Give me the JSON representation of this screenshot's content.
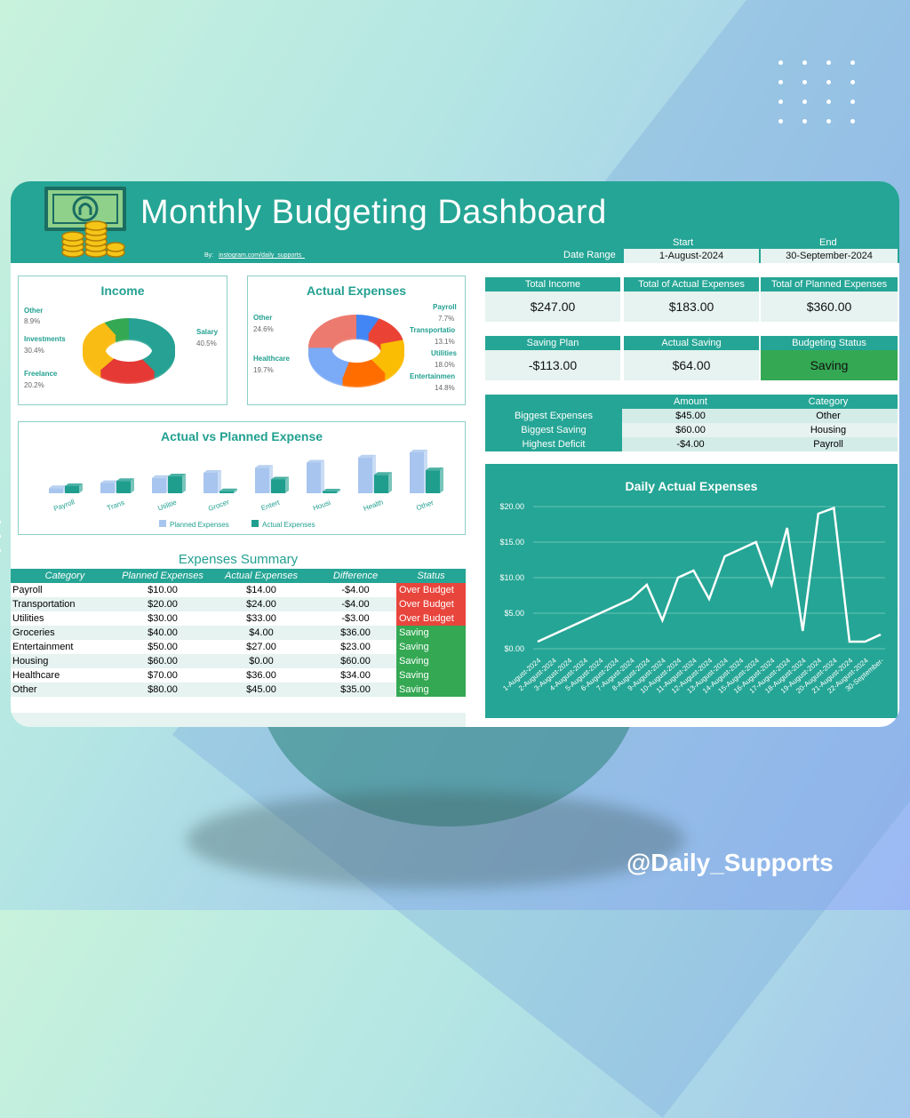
{
  "header": {
    "title": "Monthly Budgeting Dashboard",
    "by_label": "By:",
    "by_link": "instogram.com/daily_supports_",
    "logo_icon": "money-coins-icon"
  },
  "date_range": {
    "label": "Date Range",
    "start_label": "Start",
    "end_label": "End",
    "start": "1-August-2024",
    "end": "30-September-2024"
  },
  "income": {
    "title": "Income",
    "labels": [
      {
        "name": "Other",
        "pct": "8.9%"
      },
      {
        "name": "Investments",
        "pct": "30.4%"
      },
      {
        "name": "Freelance",
        "pct": "20.2%"
      },
      {
        "name": "Salary",
        "pct": "40.5%"
      }
    ]
  },
  "actual_expenses": {
    "title": "Actual Expenses",
    "labels": [
      {
        "name": "Other",
        "pct": "24.6%"
      },
      {
        "name": "Healthcare",
        "pct": "19.7%"
      },
      {
        "name": "Payroll",
        "pct": "7.7%"
      },
      {
        "name": "Transportatio",
        "pct": "13.1%"
      },
      {
        "name": "Utilities",
        "pct": "18.0%"
      },
      {
        "name": "Entertainmen",
        "pct": "14.8%"
      }
    ]
  },
  "kpi": {
    "total_income": {
      "label": "Total Income",
      "value": "$247.00"
    },
    "total_actual": {
      "label": "Total of Actual Expenses",
      "value": "$183.00"
    },
    "total_planned": {
      "label": "Total of Planned Expenses",
      "value": "$360.00"
    },
    "saving_plan": {
      "label": "Saving Plan",
      "value": "-$113.00"
    },
    "actual_saving": {
      "label": "Actual Saving",
      "value": "$64.00"
    },
    "budget_status": {
      "label": "Budgeting Status",
      "value": "Saving"
    }
  },
  "highlights": {
    "col_amount": "Amount",
    "col_category": "Category",
    "rows": [
      {
        "label": "Biggest Expenses",
        "amount": "$45.00",
        "category": "Other"
      },
      {
        "label": "Biggest Saving",
        "amount": "$60.00",
        "category": "Housing"
      },
      {
        "label": "Highest Deficit",
        "amount": "-$4.00",
        "category": "Payroll"
      }
    ]
  },
  "summary": {
    "title": "Expenses Summary",
    "headers": [
      "Category",
      "Planned Expenses",
      "Actual Expenses",
      "Difference",
      "Status"
    ],
    "rows": [
      {
        "category": "Payroll",
        "planned": "$10.00",
        "actual": "$14.00",
        "diff": "-$4.00",
        "status": "Over Budget"
      },
      {
        "category": "Transportation",
        "planned": "$20.00",
        "actual": "$24.00",
        "diff": "-$4.00",
        "status": "Over Budget"
      },
      {
        "category": "Utilities",
        "planned": "$30.00",
        "actual": "$33.00",
        "diff": "-$3.00",
        "status": "Over Budget"
      },
      {
        "category": "Groceries",
        "planned": "$40.00",
        "actual": "$4.00",
        "diff": "$36.00",
        "status": "Saving"
      },
      {
        "category": "Entertainment",
        "planned": "$50.00",
        "actual": "$27.00",
        "diff": "$23.00",
        "status": "Saving"
      },
      {
        "category": "Housing",
        "planned": "$60.00",
        "actual": "$0.00",
        "diff": "$60.00",
        "status": "Saving"
      },
      {
        "category": "Healthcare",
        "planned": "$70.00",
        "actual": "$36.00",
        "diff": "$34.00",
        "status": "Saving"
      },
      {
        "category": "Other",
        "planned": "$80.00",
        "actual": "$45.00",
        "diff": "$35.00",
        "status": "Saving"
      }
    ],
    "colors": {
      "over": "#e8453c",
      "saving": "#34a853",
      "header": "#25a595",
      "alt": "#e6f3f0"
    }
  },
  "handle": "@Daily_Supports",
  "chart_data": [
    {
      "type": "pie",
      "title": "Income",
      "labels": [
        "Salary",
        "Freelance",
        "Investments",
        "Other"
      ],
      "values": [
        40.5,
        20.2,
        30.4,
        8.9
      ],
      "colors": [
        "#26a193",
        "#e53935",
        "#f9bc15",
        "#34a853"
      ]
    },
    {
      "type": "pie",
      "title": "Actual Expenses",
      "labels": [
        "Payroll",
        "Transportatio",
        "Utilities",
        "Entertainmen",
        "Healthcare",
        "Other"
      ],
      "values": [
        7.7,
        13.1,
        18.0,
        14.8,
        19.7,
        24.6
      ],
      "colors": [
        "#4285f4",
        "#ea4335",
        "#fbbc04",
        "#ff6d01",
        "#7baaf7",
        "#ec7a6e"
      ]
    },
    {
      "type": "bar",
      "title": "Actual vs Planned Expense",
      "categories": [
        "Payroll",
        "Trans",
        "Utilitie",
        "Grocer",
        "Entert",
        "Housi",
        "Health",
        "Other"
      ],
      "series": [
        {
          "name": "Planned Expenses",
          "values": [
            10,
            20,
            30,
            40,
            50,
            60,
            70,
            80
          ],
          "color": "#a7c5ee"
        },
        {
          "name": "Actual Expenses",
          "values": [
            14,
            24,
            33,
            4,
            27,
            0,
            36,
            45
          ],
          "color": "#1f9e8e"
        }
      ],
      "legend": "bottom"
    },
    {
      "type": "line",
      "title": "Daily Actual Expenses",
      "x": [
        "1-August-2024",
        "2-August-2024",
        "3-August-2024",
        "4-August-2024",
        "5-August-2024",
        "6-August-2024",
        "7-August-2024",
        "8-August-2024",
        "9-August-2024",
        "10-August-2024",
        "11-August-2024",
        "12-August-2024",
        "13-August-2024",
        "14-August-2024",
        "15-August-2024",
        "16-August-2024",
        "17-August-2024",
        "18-August-2024",
        "19-August-2024",
        "20-August-2024",
        "21-August-2024",
        "22-August-2024",
        "30-September-"
      ],
      "values": [
        1,
        2,
        3,
        4,
        5,
        6,
        7,
        9,
        4,
        10,
        11,
        7,
        13,
        14,
        15,
        9,
        17,
        2.5,
        19,
        19.8,
        1,
        1,
        2
      ],
      "ylim": [
        0,
        20
      ],
      "yticks": [
        "$0.00",
        "$5.00",
        "$10.00",
        "$15.00",
        "$20.00"
      ],
      "grid": true
    }
  ]
}
